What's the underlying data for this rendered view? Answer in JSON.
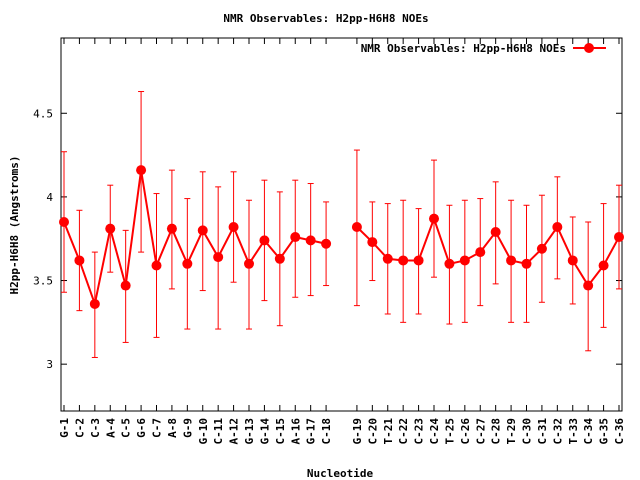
{
  "chart_data": {
    "type": "line",
    "title": "NMR Observables: H2pp-H6H8 NOEs",
    "xlabel": "Nucleotide",
    "ylabel": "H2pp-H6H8 (Angstroms)",
    "ylim": [
      2.72,
      4.95
    ],
    "yticks": [
      "3",
      "3.5",
      "4",
      "4.5"
    ],
    "grid": false,
    "legend_position": "top-right",
    "series": [
      {
        "name": "NMR Observables: H2pp-H6H8 NOEs",
        "color": "#ff0000",
        "marker": "circle",
        "segments": [
          {
            "categories": [
              "G-1",
              "C-2",
              "C-3",
              "A-4",
              "C-5",
              "G-6",
              "C-7",
              "A-8",
              "G-9",
              "G-10",
              "C-11",
              "A-12",
              "G-13",
              "G-14",
              "C-15",
              "A-16",
              "G-17",
              "C-18"
            ],
            "values": [
              3.85,
              3.62,
              3.36,
              3.81,
              3.47,
              4.16,
              3.59,
              3.81,
              3.6,
              3.8,
              3.64,
              3.82,
              3.6,
              3.74,
              3.63,
              3.76,
              3.74,
              3.72
            ],
            "low": [
              3.43,
              3.32,
              3.04,
              3.55,
              3.13,
              3.67,
              3.16,
              3.45,
              3.21,
              3.44,
              3.21,
              3.49,
              3.21,
              3.38,
              3.23,
              3.4,
              3.41,
              3.47
            ],
            "high": [
              4.27,
              3.92,
              3.67,
              4.07,
              3.8,
              4.63,
              4.02,
              4.16,
              3.99,
              4.15,
              4.06,
              4.15,
              3.98,
              4.1,
              4.03,
              4.1,
              4.08,
              3.97
            ]
          },
          {
            "categories": [
              "G-19",
              "C-20",
              "T-21",
              "C-22",
              "C-23",
              "C-24",
              "T-25",
              "C-26",
              "C-27",
              "C-28",
              "T-29",
              "C-30",
              "C-31",
              "C-32",
              "T-33",
              "C-34",
              "G-35",
              "C-36"
            ],
            "values": [
              3.82,
              3.73,
              3.63,
              3.62,
              3.62,
              3.87,
              3.6,
              3.62,
              3.67,
              3.79,
              3.62,
              3.6,
              3.69,
              3.82,
              3.62,
              3.47,
              3.59,
              3.76
            ],
            "low": [
              3.35,
              3.5,
              3.3,
              3.25,
              3.3,
              3.52,
              3.24,
              3.25,
              3.35,
              3.48,
              3.25,
              3.25,
              3.37,
              3.51,
              3.36,
              3.08,
              3.22,
              3.45
            ],
            "high": [
              4.28,
              3.97,
              3.96,
              3.98,
              3.93,
              4.22,
              3.95,
              3.98,
              3.99,
              4.09,
              3.98,
              3.95,
              4.01,
              4.12,
              3.88,
              3.85,
              3.96,
              4.07
            ]
          }
        ]
      }
    ]
  }
}
